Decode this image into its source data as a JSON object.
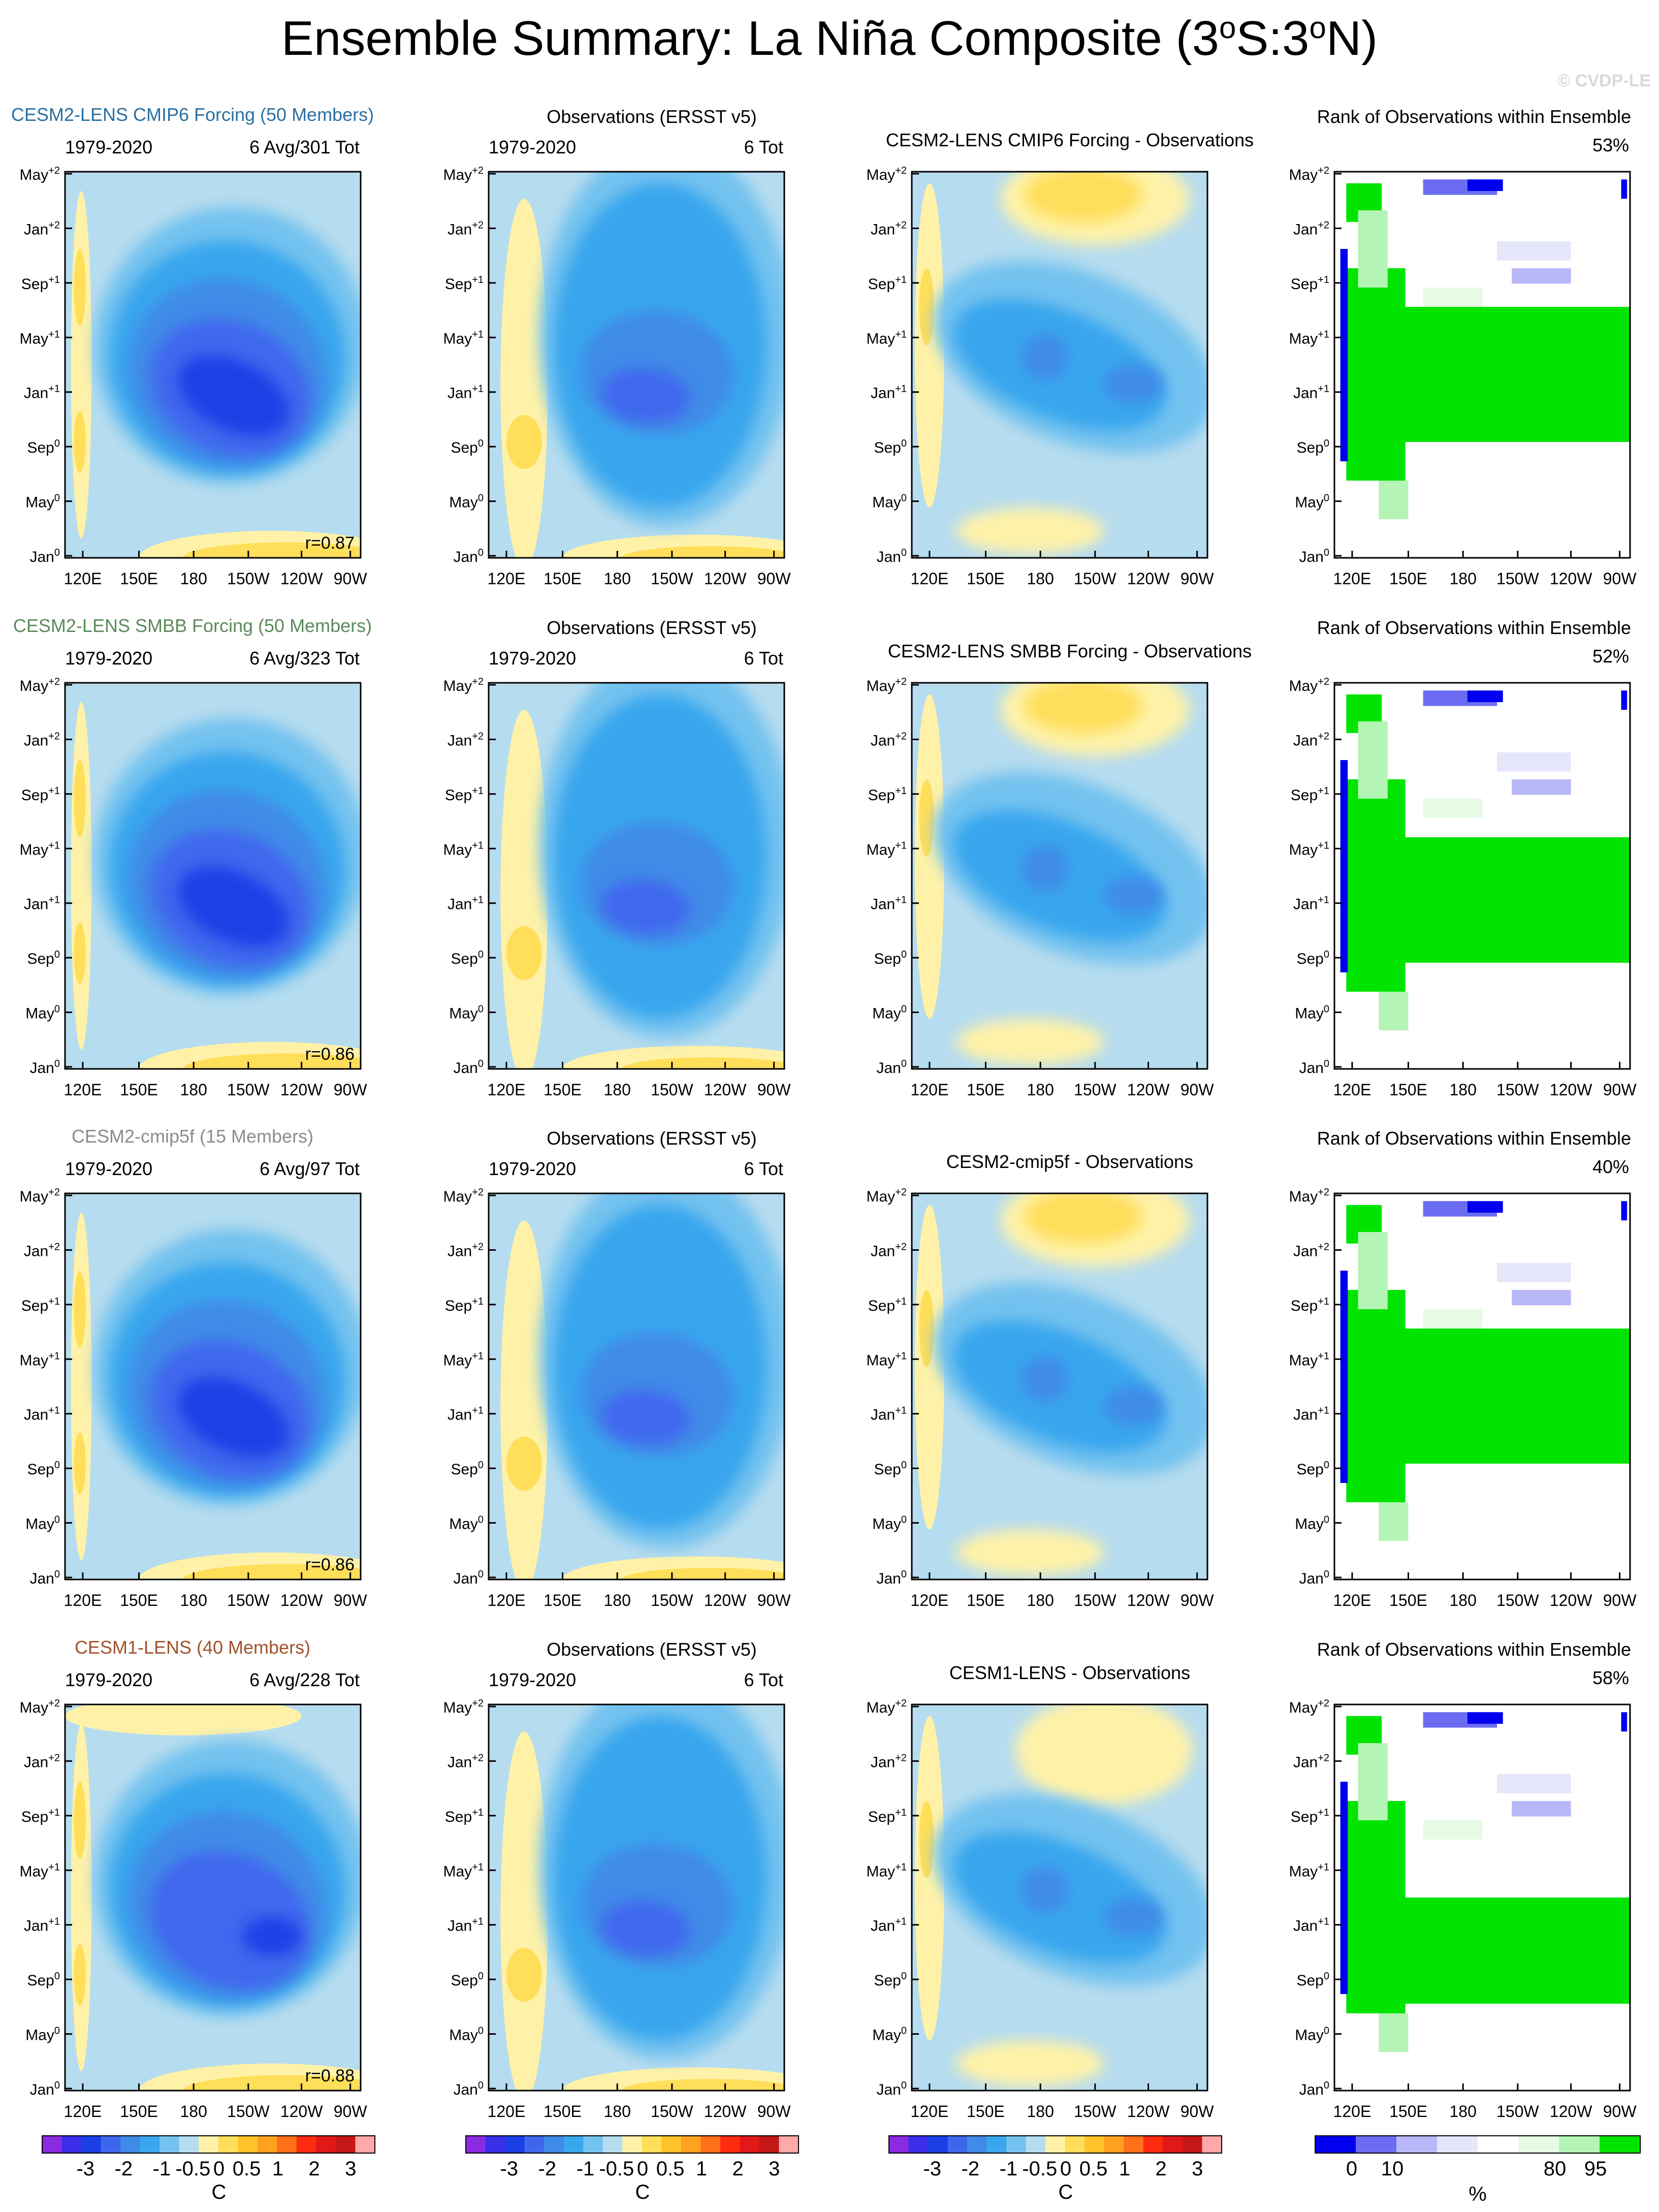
{
  "title": {
    "pre": "Ensemble Summary: La Niña Composite (3",
    "deg1": "o",
    "mid": "S:3",
    "deg2": "o",
    "post": "N)"
  },
  "copyright": "© CVDP-LE",
  "colors": {
    "main_scale": [
      "#8a2be2",
      "#3a2ee8",
      "#1b3fe6",
      "#3f67ee",
      "#3f8be8",
      "#39a6ee",
      "#73c2ef",
      "#b6dcef",
      "#fff2a8",
      "#ffde5a",
      "#ffc22a",
      "#ffa020",
      "#ff7018",
      "#ff2b10",
      "#e01818",
      "#c41818",
      "#ffa8a8"
    ],
    "rank_scale": [
      "#0000ee",
      "#6c6cf2",
      "#b8b8f8",
      "#e6e6fb",
      "#ffffff",
      "#e6fbe6",
      "#b4f4b4",
      "#00e400"
    ]
  },
  "rows": [
    {
      "model": {
        "label": "CESM2-LENS CMIP6 Forcing (50 Members)",
        "color": "#2a6fa2",
        "years": "1979-2020",
        "stats": "6 Avg/301 Tot",
        "r": "r=0.87"
      },
      "obs": {
        "label": "Observations (ERSST v5)",
        "years": "1979-2020",
        "stats": "6 Tot"
      },
      "diff": {
        "label": "CESM2-LENS CMIP6 Forcing - Observations"
      },
      "rank": {
        "label": "Rank of Observations within Ensemble",
        "pct": "53%"
      }
    },
    {
      "model": {
        "label": "CESM2-LENS SMBB Forcing (50 Members)",
        "color": "#5b8a5b",
        "years": "1979-2020",
        "stats": "6 Avg/323 Tot",
        "r": "r=0.86"
      },
      "obs": {
        "label": "Observations (ERSST v5)",
        "years": "1979-2020",
        "stats": "6 Tot"
      },
      "diff": {
        "label": "CESM2-LENS SMBB Forcing - Observations"
      },
      "rank": {
        "label": "Rank of Observations within Ensemble",
        "pct": "52%"
      }
    },
    {
      "model": {
        "label": "CESM2-cmip5f (15 Members)",
        "color": "#8c8c8c",
        "years": "1979-2020",
        "stats": "6 Avg/97 Tot",
        "r": "r=0.86"
      },
      "obs": {
        "label": "Observations (ERSST v5)",
        "years": "1979-2020",
        "stats": "6 Tot"
      },
      "diff": {
        "label": "CESM2-cmip5f - Observations"
      },
      "rank": {
        "label": "Rank of Observations within Ensemble",
        "pct": "40%"
      }
    },
    {
      "model": {
        "label": "CESM1-LENS (40 Members)",
        "color": "#a0522d",
        "years": "1979-2020",
        "stats": "6 Avg/228 Tot",
        "r": "r=0.88"
      },
      "obs": {
        "label": "Observations (ERSST v5)",
        "years": "1979-2020",
        "stats": "6 Tot"
      },
      "diff": {
        "label": "CESM1-LENS - Observations"
      },
      "rank": {
        "label": "Rank of Observations within Ensemble",
        "pct": "58%"
      }
    }
  ],
  "chart_data": {
    "type": "heatmap",
    "description_units": "SST anomaly composite, Hovmöller (longitude vs time)",
    "x_ticks": [
      "120E",
      "150E",
      "180",
      "150W",
      "120W",
      "90W"
    ],
    "y_ticks": [
      {
        "base": "Jan",
        "sup": "0"
      },
      {
        "base": "May",
        "sup": "0"
      },
      {
        "base": "Sep",
        "sup": "0"
      },
      {
        "base": "Jan",
        "sup": "+1"
      },
      {
        "base": "May",
        "sup": "+1"
      },
      {
        "base": "Sep",
        "sup": "+1"
      },
      {
        "base": "Jan",
        "sup": "+2"
      },
      {
        "base": "May",
        "sup": "+2"
      }
    ],
    "colorbar_main": {
      "labels": [
        "-3",
        "-2",
        "-1",
        "-0.5",
        "0",
        "0.5",
        "1",
        "2",
        "3"
      ],
      "unit": "C"
    },
    "colorbar_rank": {
      "labels": [
        "0",
        "10",
        "80",
        "95"
      ],
      "unit": "%"
    }
  }
}
